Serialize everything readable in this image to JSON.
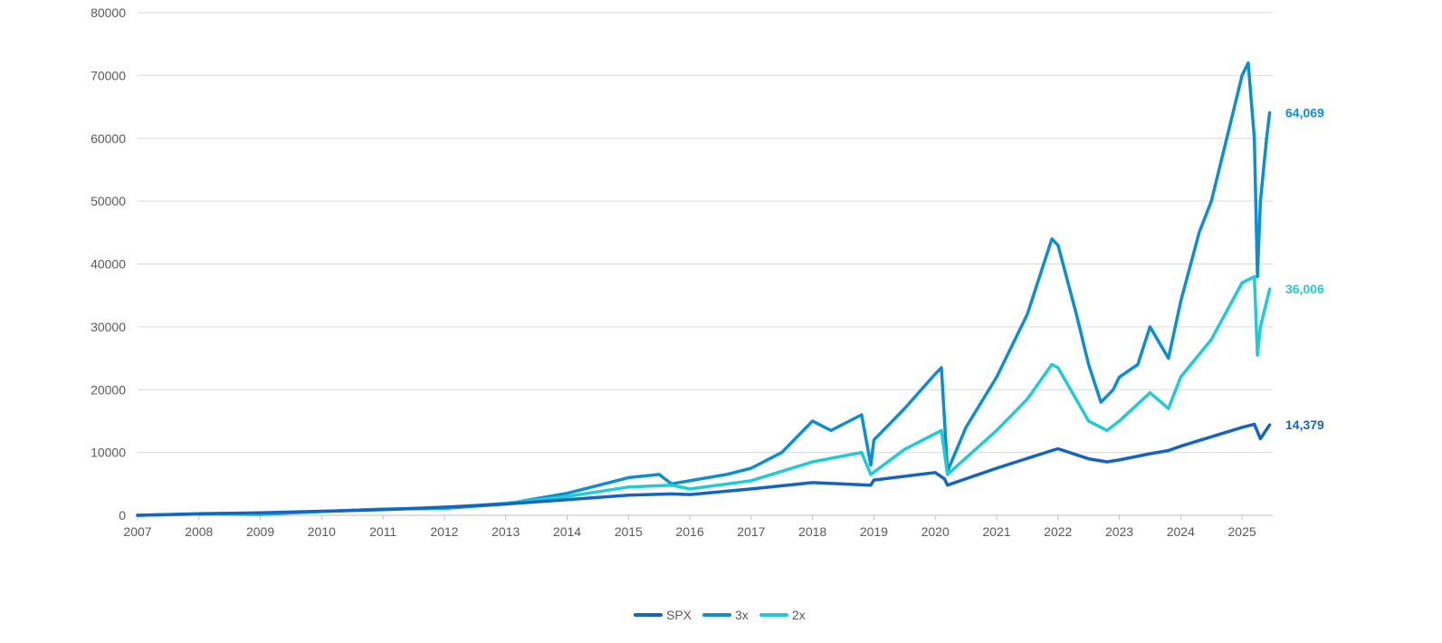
{
  "chart_data": {
    "type": "line",
    "title": "",
    "xlabel": "",
    "ylabel": "",
    "xlim": [
      2007,
      2025.5
    ],
    "ylim": [
      0,
      80000
    ],
    "grid": true,
    "legend_position": "bottom-center",
    "x_ticks": [
      "2007",
      "2008",
      "2009",
      "2010",
      "2011",
      "2012",
      "2013",
      "2014",
      "2015",
      "2016",
      "2017",
      "2018",
      "2019",
      "2020",
      "2021",
      "2022",
      "2023",
      "2024",
      "2025"
    ],
    "y_ticks": [
      "0",
      "10000",
      "20000",
      "30000",
      "40000",
      "50000",
      "60000",
      "70000",
      "80000"
    ],
    "series": [
      {
        "name": "SPX",
        "color": "#1565c0",
        "end_label": "14,379",
        "x": [
          2007.0,
          2008.0,
          2009.0,
          2010.0,
          2011.0,
          2012.0,
          2013.0,
          2014.0,
          2015.0,
          2015.7,
          2016.0,
          2017.0,
          2018.0,
          2018.95,
          2019.0,
          2020.0,
          2020.15,
          2020.2,
          2021.0,
          2021.9,
          2022.0,
          2022.5,
          2022.8,
          2023.0,
          2023.5,
          2023.8,
          2024.0,
          2024.5,
          2025.0,
          2025.2,
          2025.3,
          2025.45
        ],
        "y": [
          0,
          250,
          400,
          650,
          900,
          1300,
          1800,
          2500,
          3200,
          3400,
          3300,
          4200,
          5200,
          4800,
          5600,
          6800,
          5800,
          4800,
          7500,
          10300,
          10600,
          9000,
          8500,
          8800,
          9800,
          10300,
          11000,
          12500,
          14000,
          14500,
          12200,
          14379
        ]
      },
      {
        "name": "3x",
        "color": "#0d8fcf",
        "end_label": "64,069",
        "x": [
          2007.0,
          2008.0,
          2009.0,
          2010.0,
          2011.0,
          2012.0,
          2013.0,
          2014.0,
          2015.0,
          2015.5,
          2015.7,
          2016.0,
          2016.6,
          2017.0,
          2017.5,
          2018.0,
          2018.3,
          2018.8,
          2018.95,
          2019.0,
          2019.5,
          2020.0,
          2020.1,
          2020.2,
          2020.5,
          2021.0,
          2021.5,
          2021.9,
          2022.0,
          2022.3,
          2022.5,
          2022.7,
          2022.9,
          2023.0,
          2023.3,
          2023.5,
          2023.8,
          2024.0,
          2024.3,
          2024.5,
          2024.8,
          2025.0,
          2025.1,
          2025.2,
          2025.25,
          2025.3,
          2025.4,
          2025.45
        ],
        "y": [
          0,
          200,
          150,
          600,
          1000,
          1100,
          1800,
          3500,
          6000,
          6500,
          5000,
          5500,
          6500,
          7500,
          10000,
          15000,
          13500,
          16000,
          8000,
          12000,
          17000,
          22500,
          23500,
          7000,
          14000,
          22000,
          32000,
          44000,
          43000,
          32000,
          24000,
          18000,
          20000,
          22000,
          24000,
          30000,
          25000,
          34000,
          45000,
          50000,
          62000,
          70000,
          72000,
          60000,
          38000,
          50000,
          60000,
          64069
        ]
      },
      {
        "name": "2x",
        "color": "#1ecbd6",
        "end_label": "36,006",
        "x": [
          2007.0,
          2008.0,
          2009.0,
          2010.0,
          2011.0,
          2012.0,
          2013.0,
          2014.0,
          2015.0,
          2015.7,
          2016.0,
          2017.0,
          2018.0,
          2018.8,
          2018.95,
          2019.5,
          2020.0,
          2020.1,
          2020.2,
          2021.0,
          2021.5,
          2021.9,
          2022.0,
          2022.5,
          2022.8,
          2023.0,
          2023.5,
          2023.8,
          2024.0,
          2024.5,
          2025.0,
          2025.2,
          2025.25,
          2025.3,
          2025.45
        ],
        "y": [
          0,
          200,
          250,
          600,
          950,
          1200,
          1900,
          3000,
          4500,
          4800,
          4200,
          5500,
          8500,
          10000,
          6500,
          10500,
          13000,
          13500,
          6500,
          13500,
          18500,
          24000,
          23500,
          15000,
          13500,
          15000,
          19500,
          17000,
          22000,
          28000,
          37000,
          38000,
          25500,
          30000,
          36006
        ]
      }
    ]
  }
}
